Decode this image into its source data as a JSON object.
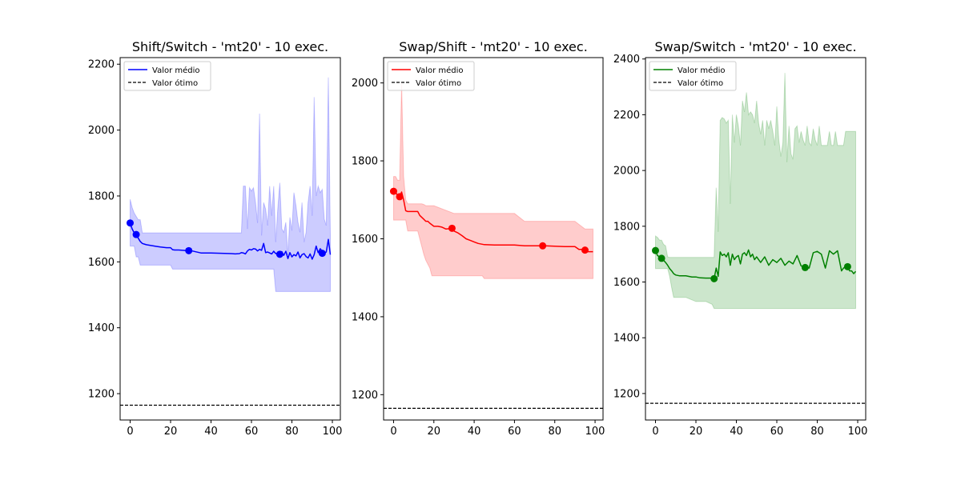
{
  "chart_data": [
    {
      "type": "line",
      "title": "Shift/Switch - 'mt20' - 10 exec.",
      "xlabel": "",
      "ylabel": "",
      "xlim": [
        -4.95,
        103.95
      ],
      "ylim": [
        1120,
        2220
      ],
      "xticks": [
        0,
        20,
        40,
        60,
        80,
        100
      ],
      "yticks": [
        1200,
        1400,
        1600,
        1800,
        2000,
        2200
      ],
      "color": "#0000ff",
      "fill_color": "#0000ff",
      "legend": {
        "position": "top-left",
        "entries": [
          "Valor médio",
          "Valor ótimo"
        ]
      },
      "optimal_value": 1165,
      "series": [
        {
          "name": "Valor médio",
          "x": [
            0,
            1,
            2,
            3,
            4,
            5,
            6,
            7,
            8,
            10,
            13,
            15,
            18,
            20,
            21,
            22,
            24,
            26,
            28,
            30,
            35,
            40,
            45,
            50,
            52,
            54,
            55,
            56,
            57,
            58,
            59,
            60,
            61,
            62,
            63,
            64,
            65,
            66,
            67,
            68,
            69,
            70,
            71,
            72,
            73,
            74,
            75,
            76,
            77,
            78,
            79,
            80,
            81,
            82,
            83,
            84,
            85,
            86,
            87,
            88,
            89,
            90,
            91,
            92,
            93,
            94,
            95,
            96,
            97,
            98,
            99
          ],
          "values": [
            1718,
            1700,
            1688,
            1683,
            1672,
            1662,
            1656,
            1654,
            1652,
            1650,
            1647,
            1645,
            1643,
            1643,
            1637,
            1636,
            1636,
            1635,
            1634,
            1634,
            1627,
            1627,
            1626,
            1625,
            1624,
            1625,
            1628,
            1627,
            1624,
            1633,
            1638,
            1636,
            1640,
            1639,
            1633,
            1638,
            1635,
            1656,
            1628,
            1630,
            1627,
            1624,
            1632,
            1625,
            1626,
            1623,
            1631,
            1620,
            1632,
            1610,
            1628,
            1615,
            1622,
            1618,
            1630,
            1612,
            1622,
            1625,
            1616,
            1612,
            1624,
            1608,
            1622,
            1648,
            1628,
            1640,
            1632,
            1626,
            1630,
            1668,
            1622
          ]
        },
        {
          "name": "band",
          "x": [
            0,
            1,
            2,
            3,
            4,
            5,
            6,
            7,
            8,
            10,
            15,
            20,
            21,
            22,
            30,
            40,
            50,
            54,
            55,
            56,
            57,
            58,
            59,
            60,
            61,
            62,
            63,
            64,
            65,
            66,
            67,
            68,
            69,
            70,
            71,
            72,
            73,
            74,
            75,
            76,
            77,
            78,
            79,
            80,
            81,
            82,
            83,
            84,
            85,
            86,
            87,
            88,
            89,
            90,
            91,
            92,
            93,
            94,
            95,
            96,
            97,
            98,
            99
          ],
          "upper": [
            1790,
            1765,
            1748,
            1738,
            1728,
            1728,
            1688,
            1688,
            1688,
            1688,
            1688,
            1688,
            1688,
            1688,
            1688,
            1688,
            1688,
            1688,
            1688,
            1830,
            1830,
            1700,
            1825,
            1815,
            1825,
            1780,
            1718,
            2050,
            1680,
            1780,
            1760,
            1710,
            1830,
            1740,
            1830,
            1660,
            1760,
            1840,
            1700,
            1690,
            1720,
            1620,
            1735,
            1695,
            1810,
            1770,
            1720,
            1690,
            1780,
            1660,
            1690,
            1780,
            1830,
            1740,
            2100,
            1800,
            1830,
            1810,
            1820,
            1730,
            1710,
            2160,
            1680
          ],
          "lower": [
            1648,
            1648,
            1648,
            1615,
            1615,
            1590,
            1590,
            1590,
            1590,
            1590,
            1590,
            1590,
            1578,
            1578,
            1578,
            1578,
            1578,
            1578,
            1578,
            1578,
            1578,
            1578,
            1578,
            1578,
            1578,
            1578,
            1578,
            1578,
            1578,
            1578,
            1578,
            1578,
            1578,
            1578,
            1578,
            1510,
            1510,
            1510,
            1510,
            1510,
            1510,
            1510,
            1510,
            1510,
            1510,
            1510,
            1510,
            1510,
            1510,
            1510,
            1510,
            1510,
            1510,
            1510,
            1510,
            1510,
            1510,
            1510,
            1510,
            1510,
            1510,
            1510,
            1510
          ]
        }
      ],
      "markers": [
        {
          "x": 0,
          "y": 1718
        },
        {
          "x": 3,
          "y": 1683
        },
        {
          "x": 29,
          "y": 1634
        },
        {
          "x": 74,
          "y": 1623
        },
        {
          "x": 95,
          "y": 1626
        }
      ]
    },
    {
      "type": "line",
      "title": "Swap/Shift - 'mt20' - 10 exec.",
      "xlabel": "",
      "ylabel": "",
      "xlim": [
        -4.95,
        103.95
      ],
      "ylim": [
        1135,
        2065
      ],
      "xticks": [
        0,
        20,
        40,
        60,
        80,
        100
      ],
      "yticks": [
        1200,
        1400,
        1600,
        1800,
        2000
      ],
      "color": "#ff0000",
      "fill_color": "#ff0000",
      "legend": {
        "position": "top-left",
        "entries": [
          "Valor médio",
          "Valor ótimo"
        ]
      },
      "optimal_value": 1165,
      "series": [
        {
          "name": "Valor médio",
          "x": [
            0,
            1,
            2,
            3,
            4,
            5,
            6,
            7,
            8,
            10,
            12,
            13,
            15,
            16,
            17,
            18,
            20,
            22,
            24,
            26,
            28,
            29,
            30,
            32,
            34,
            36,
            38,
            40,
            42,
            44,
            45,
            50,
            55,
            60,
            65,
            70,
            74,
            75,
            80,
            85,
            90,
            92,
            94,
            95,
            96,
            97,
            98,
            99
          ],
          "values": [
            1722,
            1720,
            1710,
            1708,
            1720,
            1700,
            1672,
            1670,
            1670,
            1670,
            1670,
            1660,
            1650,
            1645,
            1645,
            1640,
            1632,
            1632,
            1630,
            1625,
            1626,
            1627,
            1620,
            1615,
            1608,
            1600,
            1596,
            1592,
            1588,
            1586,
            1585,
            1584,
            1584,
            1584,
            1582,
            1582,
            1582,
            1582,
            1581,
            1580,
            1580,
            1573,
            1573,
            1571,
            1567,
            1567,
            1567,
            1567
          ]
        },
        {
          "name": "band",
          "x": [
            0,
            1,
            2,
            3,
            4,
            5,
            6,
            7,
            8,
            10,
            12,
            14,
            15,
            16,
            17,
            18,
            19,
            20,
            30,
            40,
            44,
            45,
            50,
            60,
            65,
            66,
            70,
            80,
            90,
            95,
            96,
            97,
            98,
            99
          ],
          "upper": [
            1760,
            1760,
            1750,
            1750,
            2000,
            1760,
            1700,
            1690,
            1690,
            1690,
            1690,
            1690,
            1688,
            1685,
            1685,
            1685,
            1685,
            1685,
            1665,
            1665,
            1665,
            1665,
            1665,
            1665,
            1645,
            1645,
            1645,
            1645,
            1645,
            1625,
            1625,
            1625,
            1625,
            1625
          ],
          "lower": [
            1648,
            1648,
            1648,
            1648,
            1648,
            1648,
            1648,
            1620,
            1620,
            1620,
            1620,
            1580,
            1560,
            1545,
            1535,
            1525,
            1505,
            1505,
            1505,
            1505,
            1505,
            1498,
            1498,
            1498,
            1498,
            1498,
            1498,
            1498,
            1498,
            1498,
            1498,
            1498,
            1498,
            1498
          ]
        }
      ],
      "markers": [
        {
          "x": 0,
          "y": 1722
        },
        {
          "x": 3,
          "y": 1708
        },
        {
          "x": 29,
          "y": 1627
        },
        {
          "x": 74,
          "y": 1582
        },
        {
          "x": 95,
          "y": 1571
        }
      ]
    },
    {
      "type": "line",
      "title": "Swap/Switch - 'mt20' - 10 exec.",
      "xlabel": "",
      "ylabel": "",
      "xlim": [
        -4.95,
        103.95
      ],
      "ylim": [
        1105,
        2405
      ],
      "xticks": [
        0,
        20,
        40,
        60,
        80,
        100
      ],
      "yticks": [
        1200,
        1400,
        1600,
        1800,
        2000,
        2200,
        2400
      ],
      "color": "#008000",
      "fill_color": "#008000",
      "legend": {
        "position": "top-left",
        "entries": [
          "Valor médio",
          "Valor ótimo"
        ]
      },
      "optimal_value": 1165,
      "series": [
        {
          "name": "Valor médio",
          "x": [
            0,
            1,
            2,
            3,
            4,
            5,
            6,
            7,
            8,
            9,
            10,
            12,
            15,
            18,
            20,
            22,
            25,
            28,
            29,
            30,
            31,
            32,
            33,
            34,
            35,
            36,
            37,
            38,
            39,
            40,
            41,
            42,
            43,
            44,
            45,
            46,
            47,
            48,
            49,
            50,
            52,
            54,
            56,
            58,
            60,
            62,
            64,
            66,
            68,
            70,
            72,
            74,
            75,
            76,
            78,
            80,
            82,
            84,
            86,
            88,
            90,
            92,
            93,
            94,
            95,
            96,
            97,
            98,
            99
          ],
          "values": [
            1713,
            1695,
            1690,
            1685,
            1678,
            1670,
            1660,
            1648,
            1640,
            1630,
            1625,
            1622,
            1622,
            1618,
            1618,
            1615,
            1614,
            1614,
            1612,
            1650,
            1620,
            1708,
            1695,
            1700,
            1690,
            1705,
            1660,
            1700,
            1680,
            1690,
            1695,
            1665,
            1700,
            1705,
            1695,
            1715,
            1690,
            1700,
            1680,
            1690,
            1670,
            1690,
            1660,
            1680,
            1670,
            1685,
            1660,
            1675,
            1665,
            1695,
            1658,
            1652,
            1652,
            1650,
            1705,
            1710,
            1700,
            1650,
            1712,
            1700,
            1712,
            1640,
            1650,
            1655,
            1655,
            1640,
            1640,
            1630,
            1638
          ]
        },
        {
          "name": "band",
          "x": [
            0,
            1,
            2,
            3,
            4,
            5,
            6,
            7,
            8,
            9,
            10,
            15,
            20,
            25,
            28,
            29,
            30,
            31,
            32,
            33,
            34,
            35,
            36,
            37,
            38,
            39,
            40,
            41,
            42,
            43,
            44,
            45,
            46,
            47,
            48,
            49,
            50,
            51,
            52,
            53,
            54,
            55,
            56,
            57,
            58,
            59,
            60,
            61,
            62,
            63,
            64,
            65,
            66,
            67,
            68,
            69,
            70,
            71,
            72,
            73,
            74,
            75,
            76,
            77,
            78,
            79,
            80,
            81,
            82,
            83,
            84,
            85,
            86,
            87,
            88,
            89,
            90,
            91,
            92,
            93,
            94,
            95,
            96,
            97,
            98,
            99
          ],
          "upper": [
            1765,
            1760,
            1750,
            1750,
            1735,
            1730,
            1690,
            1688,
            1688,
            1688,
            1688,
            1688,
            1688,
            1688,
            1688,
            1688,
            1938,
            1780,
            2180,
            2190,
            2185,
            2170,
            2180,
            1880,
            2200,
            2100,
            2200,
            2160,
            2090,
            2250,
            2210,
            2280,
            2200,
            2210,
            2200,
            2170,
            2250,
            2170,
            2130,
            2180,
            2090,
            2180,
            2150,
            2180,
            2140,
            2090,
            2230,
            2110,
            2050,
            2100,
            2350,
            2030,
            2160,
            2060,
            2040,
            2150,
            2160,
            2100,
            2140,
            2110,
            2090,
            2160,
            2100,
            2090,
            2150,
            2110,
            2090,
            2160,
            2090,
            2090,
            2090,
            2090,
            2140,
            2090,
            2090,
            2140,
            2090,
            2090,
            2090,
            2090,
            2140,
            2140,
            2140,
            2140,
            2140,
            2140
          ],
          "lower": [
            1648,
            1648,
            1648,
            1648,
            1648,
            1648,
            1648,
            1620,
            1580,
            1545,
            1545,
            1545,
            1530,
            1530,
            1520,
            1505,
            1505,
            1505,
            1505,
            1505,
            1505,
            1505,
            1505,
            1505,
            1505,
            1505,
            1505,
            1505,
            1505,
            1505,
            1505,
            1505,
            1505,
            1505,
            1505,
            1505,
            1505,
            1505,
            1505,
            1505,
            1505,
            1505,
            1505,
            1505,
            1505,
            1505,
            1505,
            1505,
            1505,
            1505,
            1505,
            1505,
            1505,
            1505,
            1505,
            1505,
            1505,
            1505,
            1505,
            1505,
            1505,
            1505,
            1505,
            1505,
            1505,
            1505,
            1505,
            1505,
            1505,
            1505,
            1505,
            1505,
            1505,
            1505,
            1505,
            1505,
            1505,
            1505,
            1505,
            1505,
            1505,
            1505,
            1505,
            1505,
            1505,
            1505
          ]
        }
      ],
      "markers": [
        {
          "x": 0,
          "y": 1713
        },
        {
          "x": 3,
          "y": 1685
        },
        {
          "x": 29,
          "y": 1612
        },
        {
          "x": 74,
          "y": 1652
        },
        {
          "x": 95,
          "y": 1655
        }
      ]
    }
  ]
}
